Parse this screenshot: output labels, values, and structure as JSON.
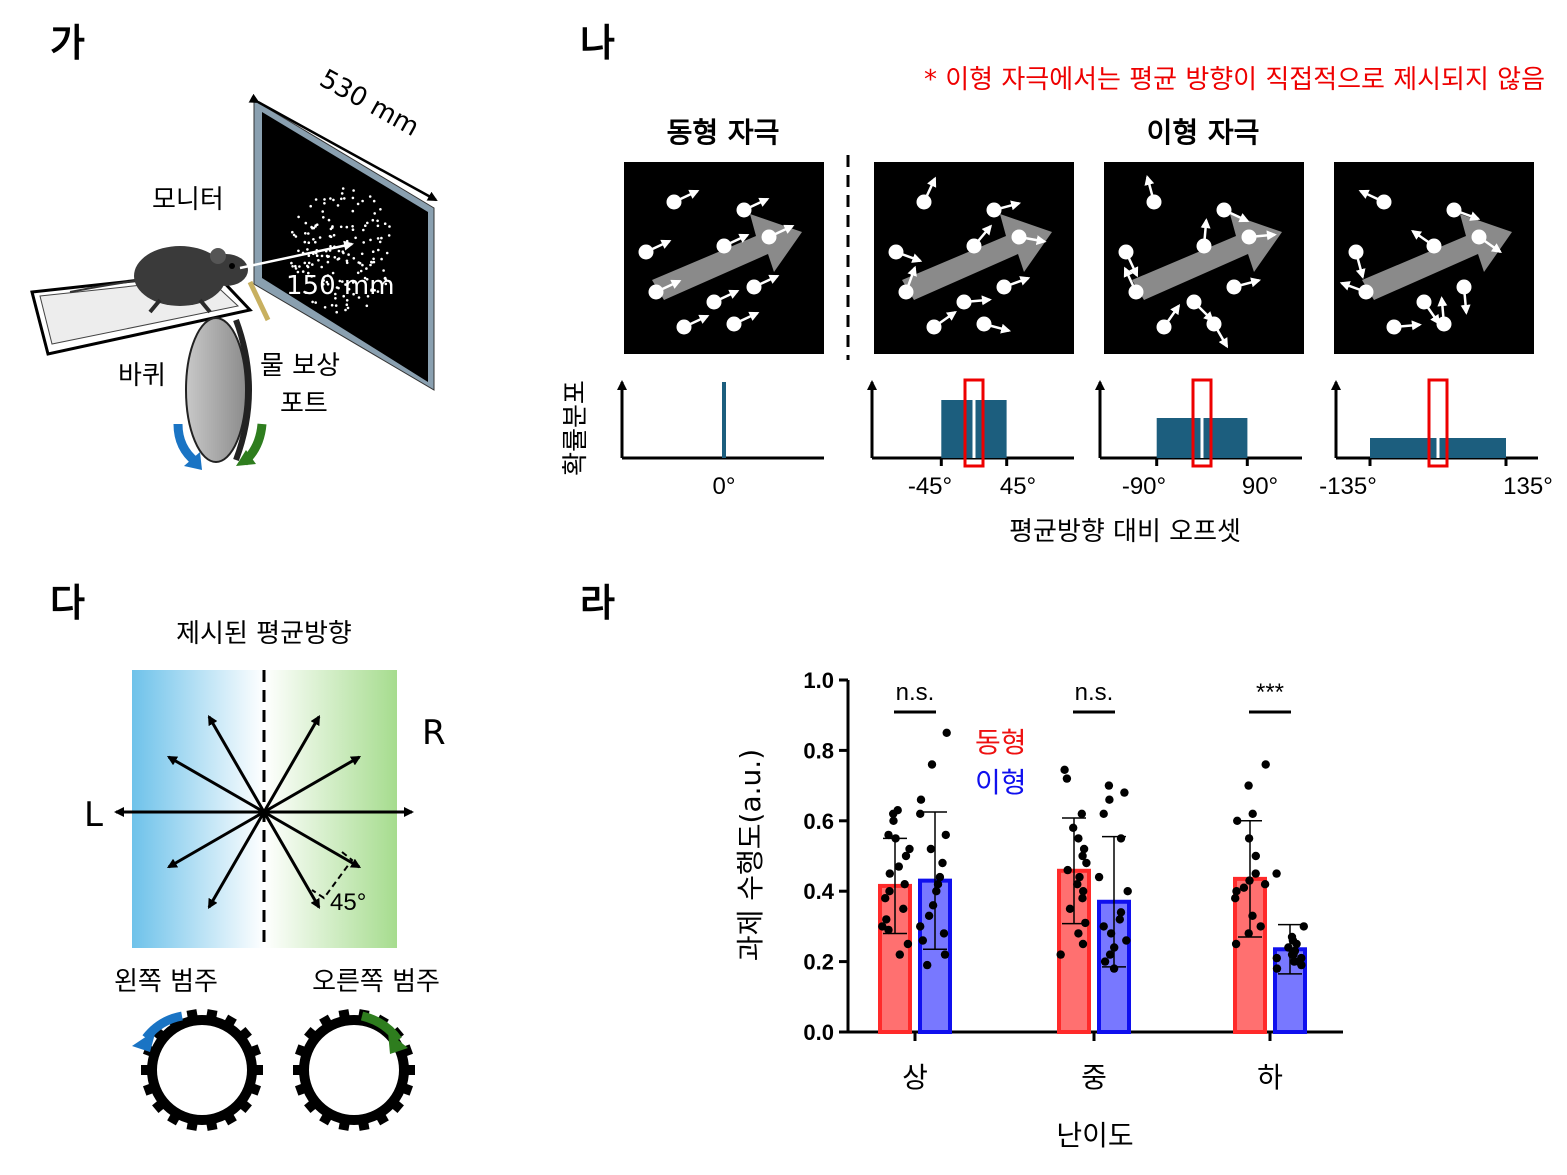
{
  "panels": {
    "a": {
      "letter": "가",
      "dimension_label": "530 mm",
      "distance_label": "150 mm",
      "monitor_label": "모니터",
      "wheel_label": "바퀴",
      "water_port_label_line1": "물 보상",
      "water_port_label_line2": "포트"
    },
    "b": {
      "letter": "나",
      "note": "* 이형 자극에서는 평균 방향이 직접적으로 제시되지 않음",
      "homogeneous_title": "동형 자극",
      "heterogeneous_title": "이형 자극",
      "ylabel": "확률분포",
      "xlabel": "평균방향 대비 오프셋",
      "distributions": [
        {
          "ticks": [
            "0°"
          ],
          "half_width_deg": 0
        },
        {
          "ticks": [
            "-45°",
            "45°"
          ],
          "half_width_deg": 45
        },
        {
          "ticks": [
            "-90°",
            "90°"
          ],
          "half_width_deg": 90
        },
        {
          "ticks": [
            "-135°",
            "135°"
          ],
          "half_width_deg": 135
        }
      ]
    },
    "c": {
      "letter": "다",
      "title": "제시된 평균방향",
      "left_label": "L",
      "right_label": "R",
      "angle_label": "45°",
      "left_category": "왼쪽 범주",
      "right_category": "오른쪽 범주"
    },
    "d": {
      "letter": "라"
    }
  },
  "chart_data": {
    "type": "bar",
    "title": "",
    "xlabel": "난이도",
    "ylabel": "과제 수행도(a.u.)",
    "ylim": [
      0,
      1.0
    ],
    "yticks": [
      "0.0",
      "0.2",
      "0.4",
      "0.6",
      "0.8",
      "1.0"
    ],
    "categories": [
      "상",
      "중",
      "하"
    ],
    "significance": [
      "n.s.",
      "n.s.",
      "***"
    ],
    "legend": [
      "동형",
      "이형"
    ],
    "series": [
      {
        "name": "동형",
        "color": "#ff7070",
        "edge": "#ff2a2a",
        "values": [
          0.415,
          0.458,
          0.435
        ],
        "sd": [
          0.135,
          0.15,
          0.165
        ],
        "points": [
          [
            0.22,
            0.25,
            0.29,
            0.3,
            0.32,
            0.35,
            0.38,
            0.4,
            0.42,
            0.45,
            0.47,
            0.5,
            0.52,
            0.55,
            0.56,
            0.6,
            0.62,
            0.63
          ],
          [
            0.22,
            0.25,
            0.28,
            0.31,
            0.35,
            0.38,
            0.4,
            0.42,
            0.44,
            0.46,
            0.48,
            0.5,
            0.52,
            0.55,
            0.58,
            0.62,
            0.72,
            0.745
          ],
          [
            0.25,
            0.28,
            0.3,
            0.33,
            0.38,
            0.4,
            0.41,
            0.42,
            0.43,
            0.45,
            0.5,
            0.55,
            0.6,
            0.62,
            0.7,
            0.76
          ]
        ]
      },
      {
        "name": "이형",
        "color": "#7878ff",
        "edge": "#1010ee",
        "values": [
          0.43,
          0.37,
          0.235
        ],
        "sd": [
          0.195,
          0.185,
          0.07
        ],
        "points": [
          [
            0.19,
            0.22,
            0.26,
            0.28,
            0.3,
            0.33,
            0.36,
            0.4,
            0.42,
            0.44,
            0.48,
            0.52,
            0.56,
            0.62,
            0.66,
            0.76,
            0.85
          ],
          [
            0.18,
            0.2,
            0.22,
            0.24,
            0.26,
            0.28,
            0.3,
            0.32,
            0.34,
            0.4,
            0.44,
            0.55,
            0.62,
            0.66,
            0.68,
            0.7
          ],
          [
            0.18,
            0.19,
            0.2,
            0.2,
            0.21,
            0.21,
            0.22,
            0.22,
            0.23,
            0.24,
            0.25,
            0.26,
            0.27,
            0.3,
            0.45
          ]
        ]
      }
    ]
  }
}
